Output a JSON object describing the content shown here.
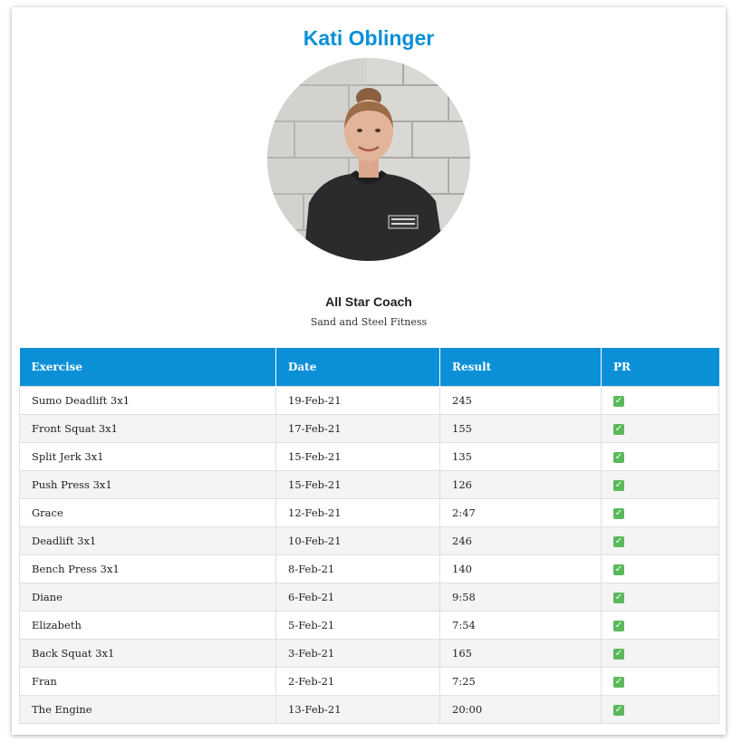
{
  "profile": {
    "name": "Kati Oblinger",
    "role": "All Star Coach",
    "gym": "Sand and Steel Fitness",
    "photo_icon": "profile-photo",
    "shirt_logo_text": "SAND & STEEL FITNESS"
  },
  "colors": {
    "accent": "#0a8fd6",
    "table_header": "#0b90d8",
    "check": "#5cb85c"
  },
  "table": {
    "columns": [
      "Exercise",
      "Date",
      "Result",
      "PR"
    ],
    "rows": [
      {
        "exercise": "Sumo Deadlift 3x1",
        "date": "19-Feb-21",
        "result": "245",
        "pr": true
      },
      {
        "exercise": "Front Squat 3x1",
        "date": "17-Feb-21",
        "result": "155",
        "pr": true
      },
      {
        "exercise": "Split Jerk 3x1",
        "date": "15-Feb-21",
        "result": "135",
        "pr": true
      },
      {
        "exercise": "Push Press 3x1",
        "date": "15-Feb-21",
        "result": "126",
        "pr": true
      },
      {
        "exercise": "Grace",
        "date": "12-Feb-21",
        "result": "2:47",
        "pr": true
      },
      {
        "exercise": "Deadlift 3x1",
        "date": "10-Feb-21",
        "result": "246",
        "pr": true
      },
      {
        "exercise": "Bench Press 3x1",
        "date": "8-Feb-21",
        "result": "140",
        "pr": true
      },
      {
        "exercise": "Diane",
        "date": "6-Feb-21",
        "result": "9:58",
        "pr": true
      },
      {
        "exercise": "Elizabeth",
        "date": "5-Feb-21",
        "result": "7:54",
        "pr": true
      },
      {
        "exercise": "Back Squat 3x1",
        "date": "3-Feb-21",
        "result": "165",
        "pr": true
      },
      {
        "exercise": "Fran",
        "date": "2-Feb-21",
        "result": "7:25",
        "pr": true
      },
      {
        "exercise": "The Engine",
        "date": "13-Feb-21",
        "result": "20:00",
        "pr": true
      }
    ],
    "pr_icon": "checkmark-icon"
  }
}
